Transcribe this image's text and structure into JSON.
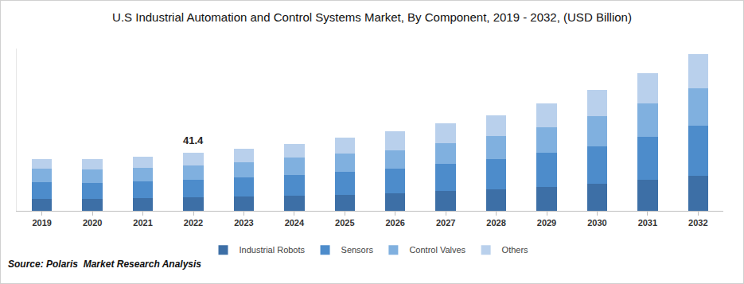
{
  "chart_data": {
    "type": "bar",
    "title": "U.S Industrial Automation and Control Systems Market, By Component, 2019 - 2032, (USD Billion)",
    "source": "Source: Polaris  Market Research Analysis",
    "stacked": true,
    "tick_labels": "x",
    "grid": false,
    "legend": "bottom",
    "categories": [
      "2019",
      "2020",
      "2021",
      "2022",
      "2023",
      "2024",
      "2025",
      "2026",
      "2027",
      "2028",
      "2029",
      "2030",
      "2031",
      "2032"
    ],
    "ylim": [
      0,
      115
    ],
    "series": [
      {
        "name": "Industrial Robots",
        "color": "#3d6fa6",
        "values": [
          8.4,
          8.2,
          8.8,
          9.5,
          10.0,
          10.6,
          11.2,
          12.3,
          14.0,
          15.1,
          16.8,
          19.0,
          21.8,
          24.6
        ]
      },
      {
        "name": "Sensors",
        "color": "#4d8ccb",
        "values": [
          11.7,
          11.6,
          12.0,
          12.3,
          13.4,
          14.6,
          16.2,
          17.4,
          19.0,
          21.3,
          24.1,
          26.9,
          30.8,
          35.8
        ]
      },
      {
        "name": "Control Valves",
        "color": "#80b0df",
        "values": [
          9.5,
          9.4,
          9.8,
          10.1,
          11.2,
          12.3,
          13.2,
          13.4,
          15.1,
          16.8,
          18.5,
          21.3,
          23.5,
          26.3
        ]
      },
      {
        "name": "Others",
        "color": "#b9d0ec",
        "values": [
          7.3,
          7.3,
          8.0,
          9.5,
          9.5,
          10.1,
          11.5,
          13.4,
          14.0,
          14.6,
          16.8,
          18.5,
          21.3,
          24.1
        ]
      }
    ],
    "annotations": [
      {
        "category": "2022",
        "text": "41.4"
      }
    ]
  }
}
